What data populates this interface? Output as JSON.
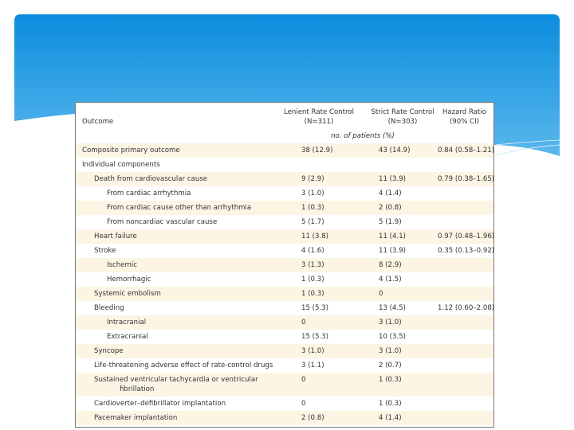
{
  "colors": {
    "banner_top": "#0b8ddd",
    "banner_bottom": "#5ab7ec",
    "row_shade": "#fdf5e4"
  },
  "table": {
    "headers": {
      "outcome": "Outcome",
      "lenient": "Lenient Rate Control",
      "lenient_n": "(N=311)",
      "strict": "Strict Rate Control",
      "strict_n": "(N=303)",
      "hr": "Hazard Ratio",
      "hr_ci": "(90% CI)",
      "units": "no. of patients (%)"
    },
    "rows": [
      {
        "outcome": "Composite primary outcome",
        "lenient": "38 (12.9)",
        "strict": "43 (14.9)",
        "hr": "0.84 (0.58–1.21)",
        "indent": 0
      },
      {
        "outcome": "Individual components",
        "lenient": "",
        "strict": "",
        "hr": "",
        "indent": 0
      },
      {
        "outcome": "Death from cardiovascular cause",
        "lenient": "9 (2.9)",
        "strict": "11 (3.9)",
        "hr": "0.79 (0.38–1.65)",
        "indent": 1
      },
      {
        "outcome": "From cardiac arrhythmia",
        "lenient": "3 (1.0)",
        "strict": "4 (1.4)",
        "hr": "",
        "indent": 2
      },
      {
        "outcome": "From cardiac cause other than arrhythmia",
        "lenient": "1 (0.3)",
        "strict": "2 (0.8)",
        "hr": "",
        "indent": 2
      },
      {
        "outcome": "From noncardiac vascular cause",
        "lenient": "5 (1.7)",
        "strict": "5 (1.9)",
        "hr": "",
        "indent": 2
      },
      {
        "outcome": "Heart failure",
        "lenient": "11 (3.8)",
        "strict": "11 (4.1)",
        "hr": "0.97 (0.48–1.96)",
        "indent": 1
      },
      {
        "outcome": "Stroke",
        "lenient": "4 (1.6)",
        "strict": "11 (3.9)",
        "hr": "0.35 (0.13–0.92)",
        "indent": 1
      },
      {
        "outcome": "Ischemic",
        "lenient": "3 (1.3)",
        "strict": "8 (2.9)",
        "hr": "",
        "indent": 2
      },
      {
        "outcome": "Hemorrhagic",
        "lenient": "1 (0.3)",
        "strict": "4 (1.5)",
        "hr": "",
        "indent": 2
      },
      {
        "outcome": "Systemic embolism",
        "lenient": "1 (0.3)",
        "strict": "0",
        "hr": "",
        "indent": 1
      },
      {
        "outcome": "Bleeding",
        "lenient": "15 (5.3)",
        "strict": "13 (4.5)",
        "hr": "1.12 (0.60–2.08)",
        "indent": 1
      },
      {
        "outcome": "Intracranial",
        "lenient": "0",
        "strict": "3 (1.0)",
        "hr": "",
        "indent": 2
      },
      {
        "outcome": "Extracranial",
        "lenient": "15 (5.3)",
        "strict": "10 (3.5)",
        "hr": "",
        "indent": 2
      },
      {
        "outcome": "Syncope",
        "lenient": "3 (1.0)",
        "strict": "3 (1.0)",
        "hr": "",
        "indent": 1
      },
      {
        "outcome": "Life-threatening adverse effect of rate-control drugs",
        "lenient": "3 (1.1)",
        "strict": "2 (0.7)",
        "hr": "",
        "indent": 1
      },
      {
        "outcome": "Sustained ventricular tachycardia or ventricular",
        "outcome_cont": "fibrillation",
        "lenient": "0",
        "strict": "1 (0.3)",
        "hr": "",
        "indent": 1
      },
      {
        "outcome": "Cardioverter–defibrillator implantation",
        "lenient": "0",
        "strict": "1 (0.3)",
        "hr": "",
        "indent": 1
      },
      {
        "outcome": "Pacemaker implantation",
        "lenient": "2 (0.8)",
        "strict": "4 (1.4)",
        "hr": "",
        "indent": 1
      }
    ]
  }
}
